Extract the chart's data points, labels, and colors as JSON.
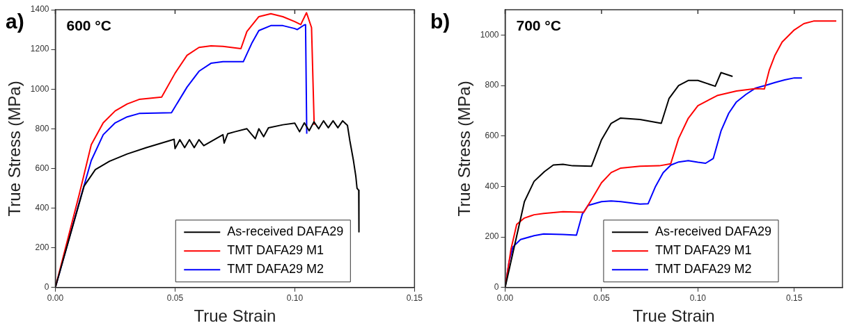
{
  "chart_data": [
    {
      "type": "line",
      "title": "a)",
      "xlabel": "True Strain",
      "ylabel": "True Stress (MPa)",
      "annotations": [
        "600 °C"
      ],
      "legend": "bottom right",
      "xlim": [
        0,
        0.15
      ],
      "ylim": [
        0,
        1400
      ],
      "xticks": [
        {
          "value": 0,
          "label": "0.00"
        },
        {
          "value": 0.05,
          "label": "0.05"
        },
        {
          "value": 0.1,
          "label": "0.10"
        },
        {
          "value": 0.15,
          "label": "0.15"
        }
      ],
      "yticks": [
        0,
        200,
        400,
        600,
        800,
        1000,
        1200,
        1400
      ],
      "series": [
        {
          "name": "As-received DAFA29",
          "color": "#000000",
          "x": [
            0,
            0.012,
            0.0167,
            0.0226,
            0.03,
            0.038,
            0.0496,
            0.05,
            0.052,
            0.054,
            0.056,
            0.058,
            0.06,
            0.062,
            0.07,
            0.0705,
            0.072,
            0.075,
            0.08,
            0.0835,
            0.085,
            0.087,
            0.089,
            0.095,
            0.1,
            0.102,
            0.104,
            0.106,
            0.108,
            0.11,
            0.112,
            0.114,
            0.116,
            0.118,
            0.12,
            0.122,
            0.123,
            0.1245,
            0.1255,
            0.126,
            0.1267,
            0.1268
          ],
          "values": [
            0,
            511,
            594,
            636,
            673,
            705,
            747,
            700,
            745,
            705,
            745,
            705,
            745,
            715,
            770,
            728,
            775,
            785,
            800,
            750,
            800,
            760,
            805,
            820,
            828,
            785,
            830,
            790,
            835,
            800,
            840,
            805,
            840,
            805,
            840,
            817,
            740,
            640,
            560,
            500,
            490,
            280
          ]
        },
        {
          "name": "TMT DAFA29 M1",
          "color": "#ff0000",
          "x": [
            0,
            0.01,
            0.015,
            0.02,
            0.025,
            0.03,
            0.035,
            0.0444,
            0.05,
            0.055,
            0.06,
            0.065,
            0.07,
            0.0775,
            0.08,
            0.085,
            0.09,
            0.095,
            0.1,
            0.1025,
            0.1049,
            0.107,
            0.1081
          ],
          "values": [
            0,
            470,
            720,
            830,
            890,
            925,
            948,
            960,
            1080,
            1170,
            1210,
            1218,
            1215,
            1204,
            1290,
            1365,
            1380,
            1365,
            1340,
            1325,
            1385,
            1310,
            820
          ]
        },
        {
          "name": "TMT DAFA29 M2",
          "color": "#0000ff",
          "x": [
            0,
            0.01,
            0.015,
            0.02,
            0.025,
            0.03,
            0.035,
            0.0485,
            0.055,
            0.06,
            0.065,
            0.07,
            0.0785,
            0.082,
            0.085,
            0.09,
            0.095,
            0.1,
            0.101,
            0.1038,
            0.1045,
            0.105
          ],
          "values": [
            0,
            430,
            640,
            770,
            830,
            860,
            877,
            881,
            1010,
            1090,
            1130,
            1138,
            1138,
            1230,
            1295,
            1320,
            1320,
            1305,
            1300,
            1322,
            1325,
            775
          ]
        }
      ]
    },
    {
      "type": "line",
      "title": "b)",
      "xlabel": "True Strain",
      "ylabel": "True Stress (MPa)",
      "annotations": [
        "700 °C"
      ],
      "legend": "bottom right",
      "xlim": [
        0,
        0.175
      ],
      "ylim": [
        0,
        1100
      ],
      "xticks": [
        {
          "value": 0,
          "label": "0.00"
        },
        {
          "value": 0.05,
          "label": "0.05"
        },
        {
          "value": 0.1,
          "label": "0.10"
        },
        {
          "value": 0.15,
          "label": "0.15"
        }
      ],
      "yticks": [
        0,
        200,
        400,
        600,
        800,
        1000
      ],
      "series": [
        {
          "name": "As-received DAFA29",
          "color": "#000000",
          "x": [
            0,
            0.005,
            0.01,
            0.015,
            0.0204,
            0.025,
            0.03,
            0.035,
            0.0448,
            0.05,
            0.055,
            0.0599,
            0.07,
            0.081,
            0.085,
            0.09,
            0.095,
            0.1,
            0.109,
            0.112,
            0.118
          ],
          "values": [
            0,
            170,
            340,
            420,
            459,
            485,
            488,
            482,
            480,
            585,
            650,
            671,
            665,
            650,
            748,
            800,
            820,
            820,
            797,
            851,
            836
          ]
        },
        {
          "name": "TMT DAFA29 M1",
          "color": "#ff0000",
          "x": [
            0,
            0.003,
            0.006,
            0.01,
            0.015,
            0.02,
            0.03,
            0.0408,
            0.045,
            0.05,
            0.055,
            0.06,
            0.07,
            0.08,
            0.0859,
            0.09,
            0.095,
            0.1,
            0.11,
            0.12,
            0.13,
            0.1345,
            0.137,
            0.14,
            0.1437,
            0.15,
            0.155,
            0.16,
            0.1718
          ],
          "values": [
            0,
            150,
            250,
            275,
            288,
            293,
            300,
            298,
            350,
            415,
            455,
            473,
            480,
            482,
            490,
            590,
            670,
            720,
            760,
            778,
            788,
            786,
            860,
            920,
            972,
            1020,
            1045,
            1055,
            1055
          ]
        },
        {
          "name": "TMT DAFA29 M2",
          "color": "#0000ff",
          "x": [
            0,
            0.002,
            0.004,
            0.008,
            0.015,
            0.02,
            0.03,
            0.037,
            0.04,
            0.043,
            0.05,
            0.055,
            0.06,
            0.07,
            0.0742,
            0.078,
            0.082,
            0.086,
            0.09,
            0.095,
            0.1,
            0.104,
            0.108,
            0.112,
            0.116,
            0.12,
            0.125,
            0.13,
            0.135,
            0.14,
            0.145,
            0.15,
            0.154
          ],
          "values": [
            0,
            100,
            160,
            190,
            205,
            212,
            210,
            207,
            290,
            325,
            340,
            343,
            340,
            330,
            332,
            400,
            455,
            485,
            497,
            502,
            496,
            492,
            511,
            620,
            690,
            735,
            765,
            790,
            800,
            812,
            822,
            830,
            830
          ]
        }
      ]
    }
  ]
}
